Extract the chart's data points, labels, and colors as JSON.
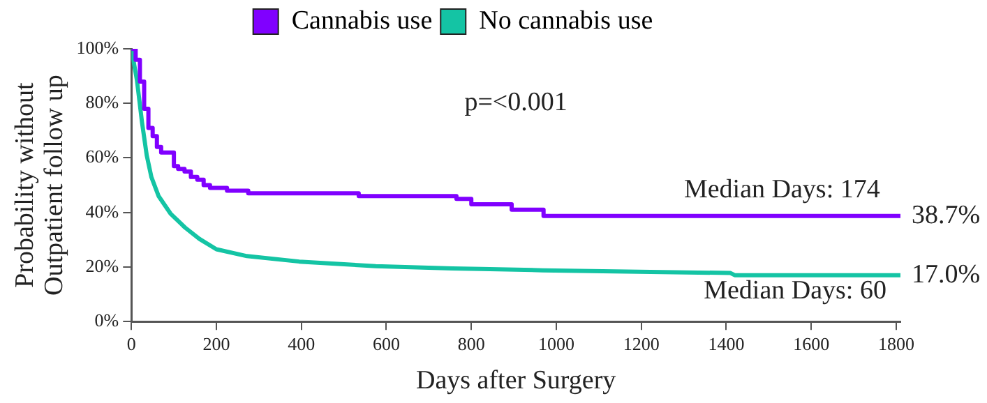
{
  "chart_data": {
    "type": "step",
    "xlabel": "Days after Surgery",
    "ylabel": "Probability without\nOutpatient follow up",
    "xlim": [
      0,
      1810
    ],
    "xticks": [
      0,
      200,
      400,
      600,
      800,
      1000,
      1200,
      1400,
      1600,
      1800
    ],
    "ylim": [
      0,
      100
    ],
    "yticks": [
      {
        "value": 0,
        "label": "0%"
      },
      {
        "value": 20,
        "label": "20%"
      },
      {
        "value": 40,
        "label": "40%"
      },
      {
        "value": 60,
        "label": "60%"
      },
      {
        "value": 80,
        "label": "80%"
      },
      {
        "value": 100,
        "label": "100%"
      }
    ],
    "grid": false,
    "legend": "top",
    "marker": "none",
    "line_style": "solid",
    "series": [
      {
        "name": "Cannabis use",
        "color": "#8000ff",
        "x": [
          0,
          10,
          20,
          30,
          40,
          50,
          60,
          70,
          100,
          110,
          125,
          140,
          155,
          170,
          185,
          225,
          275,
          535,
          765,
          800,
          895,
          970,
          1810
        ],
        "values": [
          100,
          96,
          88,
          78,
          71,
          68,
          64,
          62,
          57,
          56,
          55,
          53,
          52,
          50,
          49,
          48,
          47,
          46,
          45,
          43,
          41,
          38.7,
          38.7
        ]
      },
      {
        "name": "No cannabis use",
        "type": "line",
        "color": "#14c4a4",
        "x": [
          0,
          13,
          25,
          36,
          47,
          64,
          92,
          126,
          160,
          200,
          272,
          395,
          575,
          755,
          823,
          968,
          1410,
          1420,
          1810
        ],
        "values": [
          100,
          88.5,
          73,
          61,
          53,
          46,
          39.6,
          34.5,
          30.3,
          26.5,
          24,
          22,
          20.3,
          19.5,
          19.3,
          18.8,
          17.8,
          17.0,
          17.0
        ]
      }
    ],
    "annotations": [
      "p=<0.001",
      "Median Days: 174",
      {
        "text": "38.7%",
        "x": 1810,
        "y": 38.7
      },
      "Median Days: 60",
      {
        "text": "17.0%",
        "x": 1810,
        "y": 17.0
      }
    ]
  }
}
